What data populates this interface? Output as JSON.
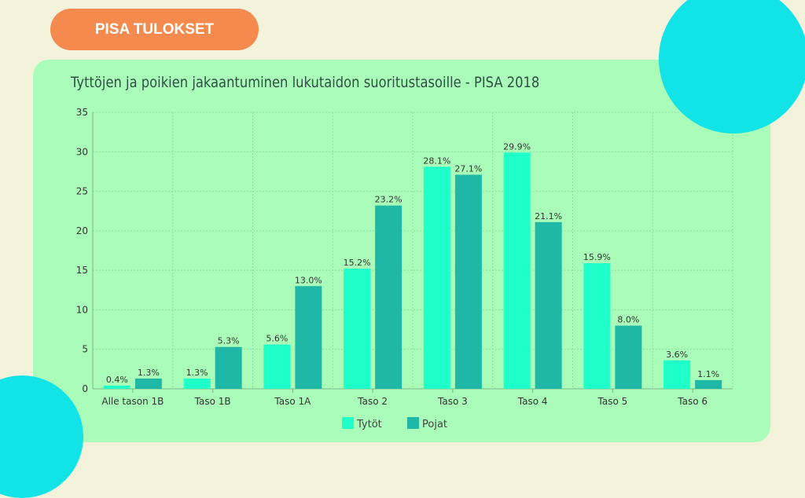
{
  "badge": {
    "label": "PISA TULOKSET"
  },
  "colors": {
    "girls": "#1effc9",
    "boys": "#1fb8a6",
    "panel": "#aafcb9",
    "badge": "#f48a4e",
    "circle": "#12e3e6"
  },
  "chart_data": {
    "type": "bar",
    "title": "Tyttöjen ja poikien jakaantuminen lukutaidon suoritustasoille - PISA 2018",
    "categories": [
      "Alle tason 1B",
      "Taso 1B",
      "Taso 1A",
      "Taso 2",
      "Taso 3",
      "Taso 4",
      "Taso 5",
      "Taso 6"
    ],
    "series": [
      {
        "name": "Tytöt",
        "values": [
          0.4,
          1.3,
          5.6,
          15.2,
          28.1,
          29.9,
          15.9,
          3.6
        ],
        "labels": [
          "0.4%",
          "1.3%",
          "5.6%",
          "15.2%",
          "28.1%",
          "29.9%",
          "15.9%",
          "3.6%"
        ]
      },
      {
        "name": "Pojat",
        "values": [
          1.3,
          5.3,
          13.0,
          23.2,
          27.1,
          21.1,
          8.0,
          1.1
        ],
        "labels": [
          "1.3%",
          "5.3%",
          "13.0%",
          "23.2%",
          "27.1%",
          "21.1%",
          "8.0%",
          "1.1%"
        ]
      }
    ],
    "ylim": [
      0,
      35
    ],
    "yticks": [
      "0",
      "5",
      "10",
      "15",
      "20",
      "25",
      "30",
      "35"
    ],
    "grid": true,
    "legend": "bottom"
  }
}
